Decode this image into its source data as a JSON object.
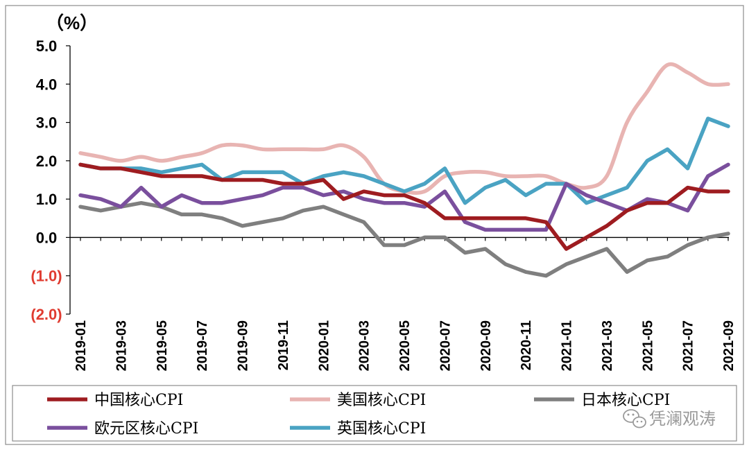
{
  "chart_data": {
    "type": "line",
    "title": "",
    "unit_label": "（%）",
    "ylim": [
      -2.0,
      5.0
    ],
    "yticks": [
      5.0,
      4.0,
      3.0,
      2.0,
      1.0,
      0.0,
      -1.0,
      -2.0
    ],
    "ytick_labels": [
      "5.0",
      "4.0",
      "3.0",
      "2.0",
      "1.0",
      "0.0",
      "(1.0)",
      "(2.0)"
    ],
    "colors": {
      "axis": "#000000",
      "negative_label": "#e03c31",
      "frame": "#8c8c8c"
    },
    "x": [
      "2019-01",
      "2019-02",
      "2019-03",
      "2019-04",
      "2019-05",
      "2019-06",
      "2019-07",
      "2019-08",
      "2019-09",
      "2019-10",
      "2019-11",
      "2019-12",
      "2020-01",
      "2020-02",
      "2020-03",
      "2020-04",
      "2020-05",
      "2020-06",
      "2020-07",
      "2020-08",
      "2020-09",
      "2020-10",
      "2020-11",
      "2020-12",
      "2021-01",
      "2021-02",
      "2021-03",
      "2021-04",
      "2021-05",
      "2021-06",
      "2021-07",
      "2021-08",
      "2021-09"
    ],
    "xtick_labels": [
      "2019-01",
      "2019-03",
      "2019-05",
      "2019-07",
      "2019-09",
      "2019-11",
      "2020-01",
      "2020-03",
      "2020-05",
      "2020-07",
      "2020-09",
      "2020-11",
      "2021-01",
      "2021-03",
      "2021-05",
      "2021-07",
      "2021-09"
    ],
    "series": [
      {
        "name": "中国核心CPI",
        "color": "#9e1c20",
        "smooth": false,
        "values": [
          1.9,
          1.8,
          1.8,
          1.7,
          1.6,
          1.6,
          1.6,
          1.5,
          1.5,
          1.5,
          1.4,
          1.4,
          1.5,
          1.0,
          1.2,
          1.1,
          1.1,
          0.9,
          0.5,
          0.5,
          0.5,
          0.5,
          0.5,
          0.4,
          -0.3,
          0.0,
          0.3,
          0.7,
          0.9,
          0.9,
          1.3,
          1.2,
          1.2
        ]
      },
      {
        "name": "美国核心CPI",
        "color": "#e8b4b2",
        "smooth": true,
        "values": [
          2.2,
          2.1,
          2.0,
          2.1,
          2.0,
          2.1,
          2.2,
          2.4,
          2.4,
          2.3,
          2.3,
          2.3,
          2.3,
          2.4,
          2.1,
          1.4,
          1.2,
          1.2,
          1.6,
          1.7,
          1.7,
          1.6,
          1.6,
          1.6,
          1.4,
          1.3,
          1.6,
          3.0,
          3.8,
          4.5,
          4.3,
          4.0,
          4.0
        ]
      },
      {
        "name": "日本核心CPI",
        "color": "#7f7f7f",
        "smooth": false,
        "values": [
          0.8,
          0.7,
          0.8,
          0.9,
          0.8,
          0.6,
          0.6,
          0.5,
          0.3,
          0.4,
          0.5,
          0.7,
          0.8,
          0.6,
          0.4,
          -0.2,
          -0.2,
          0.0,
          0.0,
          -0.4,
          -0.3,
          -0.7,
          -0.9,
          -1.0,
          -0.7,
          -0.5,
          -0.3,
          -0.9,
          -0.6,
          -0.5,
          -0.2,
          0.0,
          0.1
        ]
      },
      {
        "name": "欧元区核心CPI",
        "color": "#7a4f9d",
        "smooth": false,
        "values": [
          1.1,
          1.0,
          0.8,
          1.3,
          0.8,
          1.1,
          0.9,
          0.9,
          1.0,
          1.1,
          1.3,
          1.3,
          1.1,
          1.2,
          1.0,
          0.9,
          0.9,
          0.8,
          1.2,
          0.4,
          0.2,
          0.2,
          0.2,
          0.2,
          1.4,
          1.1,
          0.9,
          0.7,
          1.0,
          0.9,
          0.7,
          1.6,
          1.9
        ]
      },
      {
        "name": "英国核心CPI",
        "color": "#4aa3c3",
        "smooth": false,
        "values": [
          1.9,
          1.8,
          1.8,
          1.8,
          1.7,
          1.8,
          1.9,
          1.5,
          1.7,
          1.7,
          1.7,
          1.4,
          1.6,
          1.7,
          1.6,
          1.4,
          1.2,
          1.4,
          1.8,
          0.9,
          1.3,
          1.5,
          1.1,
          1.4,
          1.4,
          0.9,
          1.1,
          1.3,
          2.0,
          2.3,
          1.8,
          3.1,
          2.9
        ]
      }
    ],
    "legend_position": "bottom"
  },
  "watermark": {
    "text": "凭澜观涛",
    "icon": "wechat-icon"
  }
}
